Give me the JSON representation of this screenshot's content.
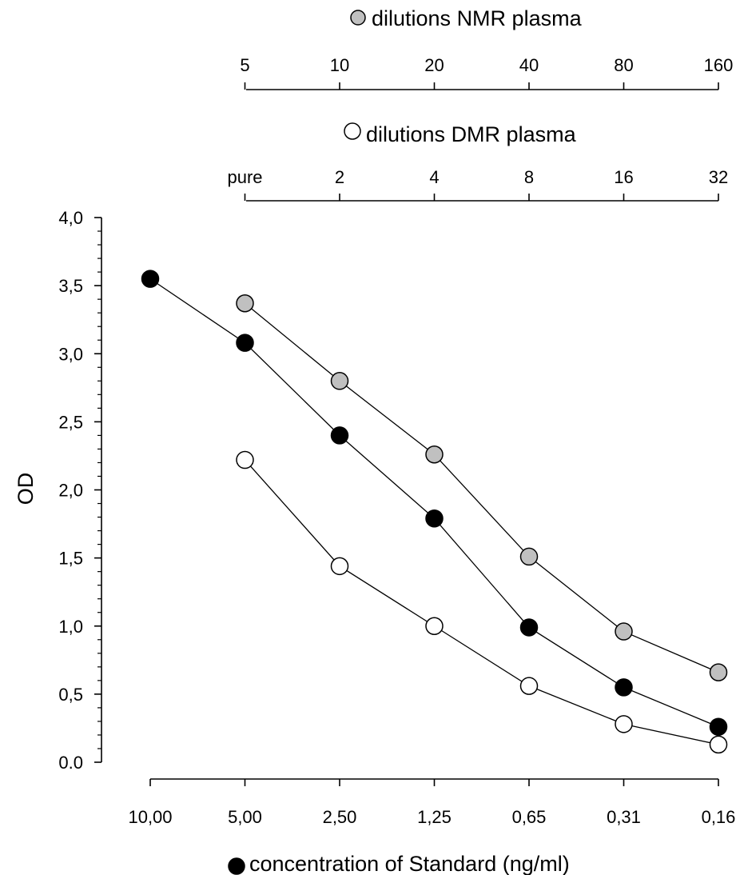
{
  "chart_data": {
    "type": "line",
    "ylabel": "OD",
    "xlabel": "concentration of Standard (ng/ml)",
    "y_tick_labels": [
      "0.0",
      "0,5",
      "1,0",
      "1,5",
      "2,0",
      "2,5",
      "3,0",
      "3,5",
      "4,0"
    ],
    "ylim": [
      0,
      4
    ],
    "x_axes": {
      "standard": {
        "label": "concentration of Standard (ng/ml)",
        "categories": [
          "10,00",
          "5,00",
          "2,50",
          "1,25",
          "0,65",
          "0,31",
          "0,16"
        ]
      },
      "nmr": {
        "label": "dilutions NMR plasma",
        "categories": [
          "5",
          "10",
          "20",
          "40",
          "80",
          "160"
        ]
      },
      "dmr": {
        "label": "dilutions DMR plasma",
        "categories": [
          "pure",
          "2",
          "4",
          "8",
          "16",
          "32"
        ]
      }
    },
    "series": [
      {
        "name": "concentration of Standard (ng/ml)",
        "marker_color": "#000000",
        "x_index": [
          0,
          1,
          2,
          3,
          4,
          5,
          6
        ],
        "values": [
          3.55,
          3.08,
          2.4,
          1.79,
          0.99,
          0.55,
          0.26
        ]
      },
      {
        "name": "dilutions NMR plasma",
        "marker_color": "#c0c0c0",
        "x_index": [
          1,
          2,
          3,
          4,
          5,
          6
        ],
        "values": [
          3.37,
          2.8,
          2.26,
          1.51,
          0.96,
          0.66
        ]
      },
      {
        "name": "dilutions DMR plasma",
        "marker_color": "#ffffff",
        "x_index": [
          1,
          2,
          3,
          4,
          5,
          6
        ],
        "values": [
          2.22,
          1.44,
          1.0,
          0.56,
          0.28,
          0.13
        ]
      }
    ],
    "grid": false
  }
}
